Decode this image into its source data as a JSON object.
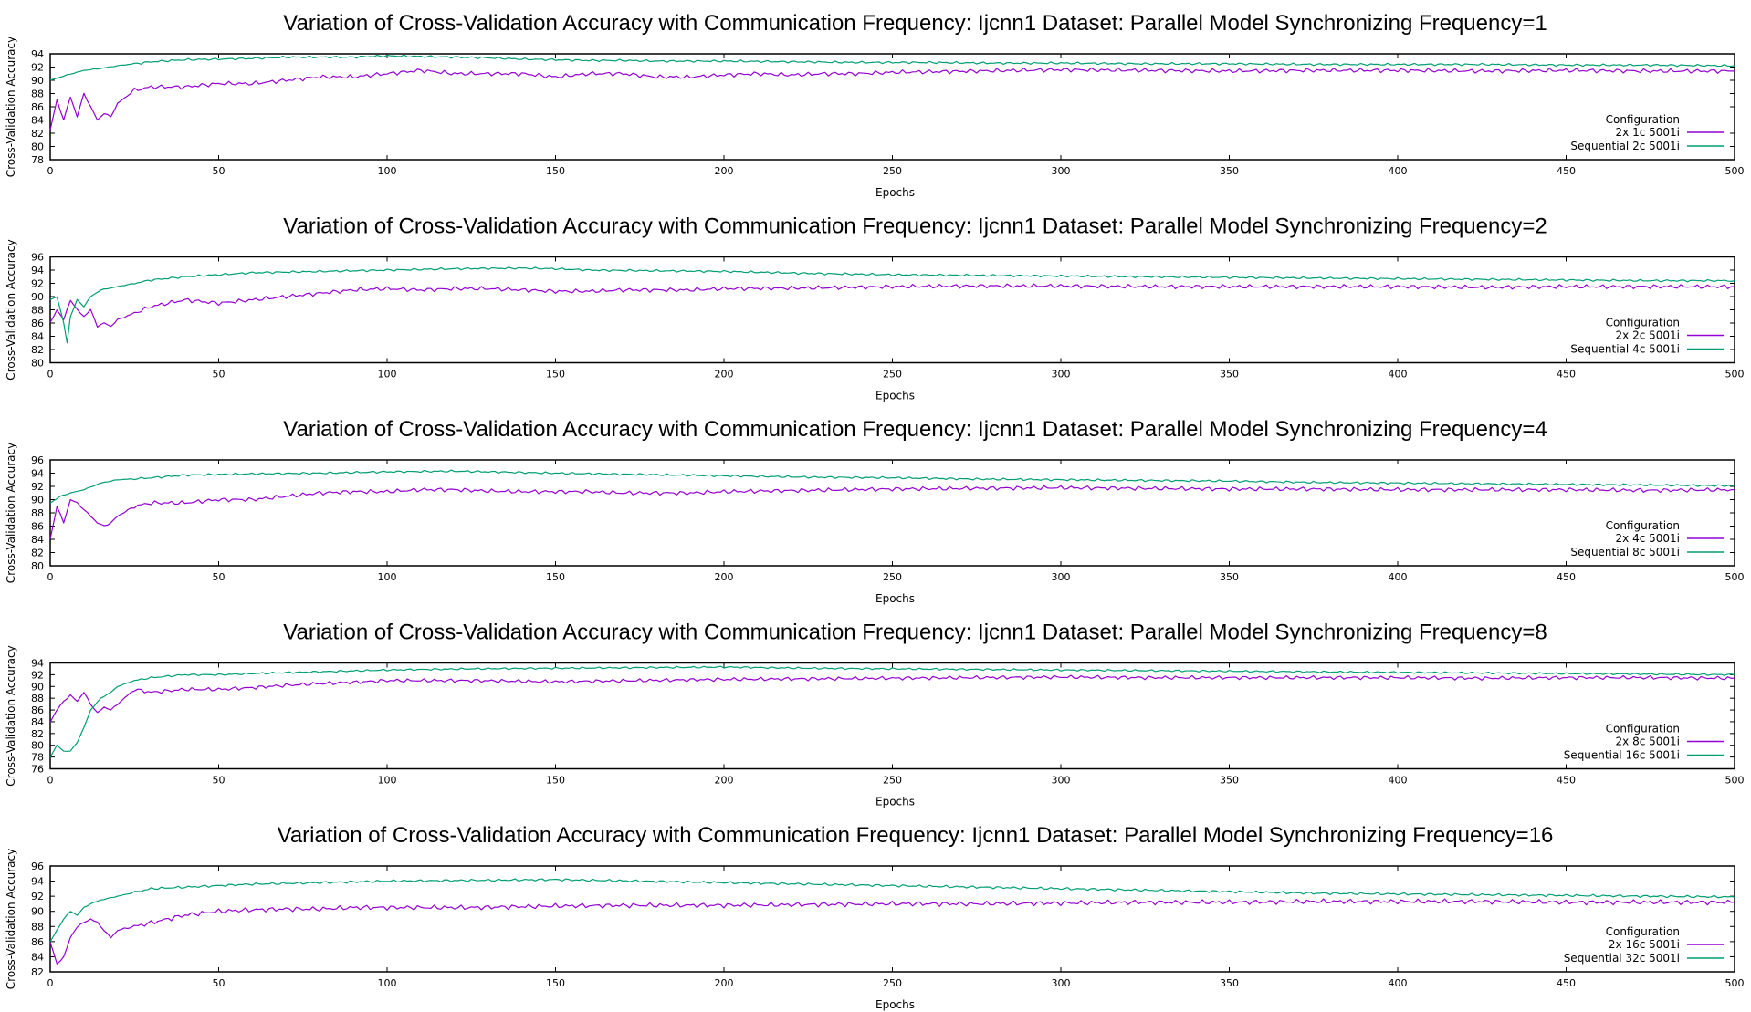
{
  "colors": {
    "parallel": "#9400d3",
    "sequential": "#009e73"
  },
  "chart_data": [
    {
      "type": "line",
      "title": "Variation of Cross-Validation Accuracy with Communication Frequency: Ijcnn1 Dataset: Parallel Model Synchronizing Frequency=1",
      "xlabel": "Epochs",
      "ylabel": "Cross-Validation Accuracy",
      "xlim": [
        0,
        500
      ],
      "ylim": [
        78,
        94
      ],
      "xticks": [
        0,
        50,
        100,
        150,
        200,
        250,
        300,
        350,
        400,
        450,
        500
      ],
      "yticks": [
        78,
        80,
        82,
        84,
        86,
        88,
        90,
        92,
        94
      ],
      "grid": false,
      "legend_title": "Configuration",
      "legend_position": "bottom-right",
      "series": [
        {
          "name": "2x 1c 5001i",
          "color": "#9400d3",
          "x": [
            0,
            2,
            4,
            6,
            8,
            10,
            12,
            14,
            16,
            18,
            20,
            25,
            30,
            40,
            50,
            60,
            70,
            80,
            90,
            100,
            110,
            120,
            130,
            140,
            150,
            160,
            170,
            180,
            190,
            200,
            210,
            220,
            230,
            240,
            250,
            275,
            300,
            325,
            350,
            375,
            400,
            425,
            450,
            475,
            500
          ],
          "y": [
            82.5,
            87,
            84,
            87.5,
            84.5,
            88,
            86,
            84,
            85,
            84.5,
            86.5,
            88.5,
            89,
            89,
            89.5,
            89.5,
            90,
            90.5,
            90.5,
            91,
            91.5,
            91,
            91,
            91,
            90.5,
            91,
            91,
            90.5,
            90.5,
            90.8,
            91,
            90.8,
            91,
            91,
            91.2,
            91.4,
            91.6,
            91.5,
            91.4,
            91.5,
            91.5,
            91.4,
            91.5,
            91.4,
            91.4
          ]
        },
        {
          "name": "Sequential 2c 5001i",
          "color": "#009e73",
          "x": [
            0,
            5,
            10,
            15,
            20,
            30,
            40,
            50,
            60,
            70,
            80,
            90,
            100,
            110,
            120,
            130,
            140,
            150,
            160,
            170,
            180,
            190,
            200,
            220,
            240,
            260,
            280,
            300,
            325,
            350,
            375,
            400,
            425,
            450,
            475,
            500
          ],
          "y": [
            90,
            90.8,
            91.5,
            91.8,
            92.2,
            92.8,
            93.1,
            93.2,
            93.3,
            93.5,
            93.5,
            93.5,
            93.7,
            93.6,
            93.5,
            93.4,
            93.2,
            93.1,
            93,
            93,
            92.9,
            92.9,
            92.9,
            92.8,
            92.7,
            92.7,
            92.6,
            92.6,
            92.5,
            92.5,
            92.4,
            92.4,
            92.4,
            92.3,
            92.3,
            92.2
          ]
        }
      ]
    },
    {
      "type": "line",
      "title": "Variation of Cross-Validation Accuracy with Communication Frequency: Ijcnn1 Dataset: Parallel Model Synchronizing Frequency=2",
      "xlabel": "Epochs",
      "ylabel": "Cross-Validation Accuracy",
      "xlim": [
        0,
        500
      ],
      "ylim": [
        80,
        96
      ],
      "xticks": [
        0,
        50,
        100,
        150,
        200,
        250,
        300,
        350,
        400,
        450,
        500
      ],
      "yticks": [
        80,
        82,
        84,
        86,
        88,
        90,
        92,
        94,
        96
      ],
      "grid": false,
      "legend_title": "Configuration",
      "legend_position": "bottom-right",
      "series": [
        {
          "name": "2x 2c 5001i",
          "color": "#9400d3",
          "x": [
            0,
            2,
            4,
            6,
            8,
            10,
            12,
            14,
            16,
            18,
            20,
            25,
            30,
            35,
            40,
            50,
            60,
            70,
            80,
            90,
            100,
            110,
            120,
            130,
            140,
            150,
            160,
            170,
            180,
            190,
            200,
            225,
            250,
            275,
            300,
            325,
            350,
            375,
            400,
            425,
            450,
            475,
            500
          ],
          "y": [
            86,
            88,
            86.5,
            89.5,
            88,
            87,
            88,
            85.5,
            86,
            85.5,
            86.5,
            87.5,
            88.5,
            89,
            89.5,
            89,
            89.5,
            90,
            90.5,
            91,
            91.2,
            91,
            91.2,
            91.2,
            91,
            90.8,
            90.8,
            91,
            91,
            91,
            91.2,
            91.3,
            91.5,
            91.6,
            91.6,
            91.5,
            91.5,
            91.5,
            91.5,
            91.4,
            91.5,
            91.5,
            91.5
          ]
        },
        {
          "name": "Sequential 4c 5001i",
          "color": "#009e73",
          "x": [
            0,
            2,
            4,
            5,
            6,
            8,
            10,
            12,
            15,
            20,
            25,
            30,
            40,
            50,
            60,
            80,
            100,
            120,
            140,
            150,
            160,
            180,
            200,
            225,
            250,
            275,
            300,
            325,
            350,
            375,
            400,
            425,
            450,
            475,
            500
          ],
          "y": [
            89.5,
            90,
            86,
            83,
            87,
            89.5,
            88.5,
            90,
            91,
            91.5,
            92,
            92.5,
            93,
            93.3,
            93.6,
            93.8,
            94,
            94.2,
            94.3,
            94.2,
            94,
            93.9,
            93.8,
            93.5,
            93.3,
            93.2,
            93.1,
            93,
            92.9,
            92.8,
            92.7,
            92.6,
            92.5,
            92.4,
            92.4
          ]
        }
      ]
    },
    {
      "type": "line",
      "title": "Variation of Cross-Validation Accuracy with Communication Frequency: Ijcnn1 Dataset: Parallel Model Synchronizing Frequency=4",
      "xlabel": "Epochs",
      "ylabel": "Cross-Validation Accuracy",
      "xlim": [
        0,
        500
      ],
      "ylim": [
        80,
        96
      ],
      "xticks": [
        0,
        50,
        100,
        150,
        200,
        250,
        300,
        350,
        400,
        450,
        500
      ],
      "yticks": [
        80,
        82,
        84,
        86,
        88,
        90,
        92,
        94,
        96
      ],
      "grid": false,
      "legend_title": "Configuration",
      "legend_position": "bottom-right",
      "series": [
        {
          "name": "2x 4c 5001i",
          "color": "#9400d3",
          "x": [
            0,
            2,
            4,
            6,
            8,
            10,
            12,
            14,
            16,
            18,
            20,
            25,
            30,
            40,
            50,
            60,
            70,
            80,
            90,
            100,
            110,
            120,
            130,
            140,
            150,
            160,
            170,
            180,
            190,
            200,
            225,
            250,
            275,
            300,
            325,
            350,
            375,
            400,
            425,
            450,
            475,
            500
          ],
          "y": [
            84,
            89,
            86.5,
            90,
            89.5,
            88.5,
            87.5,
            86.5,
            86,
            86.5,
            87.5,
            89,
            89.5,
            89.5,
            90,
            90,
            90.5,
            91,
            91.2,
            91.2,
            91.5,
            91.5,
            91.3,
            91.2,
            91.2,
            91.2,
            91,
            91,
            91,
            91.2,
            91.4,
            91.6,
            91.7,
            91.8,
            91.7,
            91.6,
            91.6,
            91.5,
            91.5,
            91.5,
            91.4,
            91.5
          ]
        },
        {
          "name": "Sequential 8c 5001i",
          "color": "#009e73",
          "x": [
            0,
            3,
            6,
            10,
            15,
            20,
            30,
            40,
            50,
            60,
            80,
            100,
            120,
            140,
            150,
            175,
            200,
            225,
            250,
            275,
            300,
            325,
            350,
            375,
            400,
            425,
            450,
            475,
            500
          ],
          "y": [
            89.5,
            90.5,
            91,
            91.5,
            92.5,
            93,
            93.3,
            93.7,
            93.8,
            93.9,
            94,
            94.2,
            94.3,
            94.1,
            94,
            93.8,
            93.6,
            93.4,
            93.3,
            93.1,
            93,
            92.9,
            92.8,
            92.6,
            92.5,
            92.4,
            92.3,
            92.2,
            92.1
          ]
        }
      ]
    },
    {
      "type": "line",
      "title": "Variation of Cross-Validation Accuracy with Communication Frequency: Ijcnn1 Dataset: Parallel Model Synchronizing Frequency=8",
      "xlabel": "Epochs",
      "ylabel": "Cross-Validation Accuracy",
      "xlim": [
        0,
        500
      ],
      "ylim": [
        76,
        94
      ],
      "xticks": [
        0,
        50,
        100,
        150,
        200,
        250,
        300,
        350,
        400,
        450,
        500
      ],
      "yticks": [
        76,
        78,
        80,
        82,
        84,
        86,
        88,
        90,
        92,
        94
      ],
      "grid": false,
      "legend_title": "Configuration",
      "legend_position": "bottom-right",
      "series": [
        {
          "name": "2x 8c 5001i",
          "color": "#9400d3",
          "x": [
            0,
            2,
            4,
            6,
            8,
            10,
            12,
            14,
            16,
            18,
            20,
            25,
            30,
            40,
            50,
            60,
            70,
            80,
            90,
            100,
            125,
            150,
            175,
            200,
            225,
            250,
            275,
            300,
            325,
            350,
            375,
            400,
            425,
            450,
            475,
            500
          ],
          "y": [
            84,
            86,
            87.5,
            88.5,
            87.5,
            89,
            87,
            85.5,
            86.5,
            86,
            87,
            89.5,
            89,
            89.5,
            89.5,
            89.8,
            90.2,
            90.5,
            90.7,
            91,
            91,
            90.8,
            91,
            91.2,
            91.3,
            91.4,
            91.5,
            91.6,
            91.5,
            91.5,
            91.5,
            91.5,
            91.4,
            91.5,
            91.5,
            91.4
          ]
        },
        {
          "name": "Sequential 16c 5001i",
          "color": "#009e73",
          "x": [
            0,
            2,
            4,
            6,
            8,
            10,
            12,
            15,
            18,
            20,
            25,
            30,
            40,
            50,
            60,
            80,
            100,
            125,
            150,
            175,
            200,
            225,
            250,
            275,
            300,
            325,
            350,
            375,
            400,
            425,
            450,
            475,
            500
          ],
          "y": [
            78,
            80,
            79,
            79,
            80.5,
            83,
            86,
            88,
            89,
            90,
            91,
            91.5,
            92,
            92,
            92.2,
            92.5,
            92.8,
            93,
            93.1,
            93.2,
            93.3,
            93.1,
            93,
            92.9,
            92.8,
            92.7,
            92.6,
            92.5,
            92.4,
            92.3,
            92.2,
            92.1,
            92
          ]
        }
      ]
    },
    {
      "type": "line",
      "title": "Variation of Cross-Validation Accuracy with Communication Frequency: Ijcnn1 Dataset: Parallel Model Synchronizing Frequency=16",
      "xlabel": "Epochs",
      "ylabel": "Cross-Validation Accuracy",
      "xlim": [
        0,
        500
      ],
      "ylim": [
        82,
        96
      ],
      "xticks": [
        0,
        50,
        100,
        150,
        200,
        250,
        300,
        350,
        400,
        450,
        500
      ],
      "yticks": [
        82,
        84,
        86,
        88,
        90,
        92,
        94,
        96
      ],
      "grid": false,
      "legend_title": "Configuration",
      "legend_position": "bottom-right",
      "series": [
        {
          "name": "2x 16c 5001i",
          "color": "#9400d3",
          "x": [
            0,
            2,
            4,
            6,
            8,
            10,
            12,
            14,
            16,
            18,
            20,
            25,
            30,
            40,
            50,
            60,
            70,
            80,
            90,
            100,
            125,
            150,
            175,
            200,
            225,
            250,
            275,
            300,
            325,
            350,
            375,
            400,
            425,
            450,
            475,
            500
          ],
          "y": [
            86,
            83,
            84,
            86.5,
            88,
            88.5,
            89,
            88.5,
            87.5,
            86.5,
            87.5,
            88,
            88.5,
            89.5,
            90,
            90.2,
            90.3,
            90.3,
            90.5,
            90.5,
            90.5,
            90.7,
            90.8,
            90.8,
            90.9,
            91,
            91,
            91.1,
            91.2,
            91.2,
            91.3,
            91.3,
            91.3,
            91.2,
            91.2,
            91.2
          ]
        },
        {
          "name": "Sequential 32c 5001i",
          "color": "#009e73",
          "x": [
            0,
            2,
            4,
            6,
            8,
            10,
            12,
            15,
            20,
            25,
            30,
            40,
            50,
            60,
            80,
            100,
            125,
            150,
            175,
            200,
            225,
            250,
            275,
            300,
            325,
            350,
            375,
            400,
            425,
            450,
            475,
            500
          ],
          "y": [
            86,
            87.5,
            89,
            90,
            89.5,
            90.5,
            91,
            91.5,
            92,
            92.5,
            93,
            93.2,
            93.4,
            93.6,
            93.8,
            94,
            94.1,
            94.2,
            94,
            93.8,
            93.6,
            93.4,
            93.2,
            93,
            92.8,
            92.6,
            92.4,
            92.3,
            92.2,
            92.1,
            92,
            91.9
          ]
        }
      ]
    }
  ]
}
